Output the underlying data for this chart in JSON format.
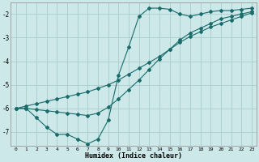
{
  "xlabel": "Humidex (Indice chaleur)",
  "bg_color": "#cce8e8",
  "line_color": "#1a6b6b",
  "grid_color": "#aacccc",
  "xlim": [
    -0.5,
    23.5
  ],
  "ylim": [
    -7.6,
    -1.5
  ],
  "yticks": [
    -7,
    -6,
    -5,
    -4,
    -3,
    -2
  ],
  "xticks": [
    0,
    1,
    2,
    3,
    4,
    5,
    6,
    7,
    8,
    9,
    10,
    11,
    12,
    13,
    14,
    15,
    16,
    17,
    18,
    19,
    20,
    21,
    22,
    23
  ],
  "line1_x": [
    0,
    1,
    2,
    3,
    4,
    5,
    6,
    7,
    8,
    9,
    10,
    11,
    12,
    13,
    14,
    15,
    16,
    17,
    18,
    19,
    20,
    21,
    22,
    23
  ],
  "line1_y": [
    -6.0,
    -6.0,
    -6.4,
    -6.8,
    -7.1,
    -7.1,
    -7.3,
    -7.5,
    -7.3,
    -6.5,
    -4.6,
    -3.4,
    -2.1,
    -1.75,
    -1.75,
    -1.8,
    -2.0,
    -2.1,
    -2.0,
    -1.9,
    -1.85,
    -1.85,
    -1.8,
    -1.75
  ],
  "line2_x": [
    0,
    1,
    2,
    3,
    4,
    5,
    6,
    7,
    8,
    9,
    10,
    11,
    12,
    13,
    14,
    15,
    16,
    17,
    18,
    19,
    20,
    21,
    22,
    23
  ],
  "line2_y": [
    -6.0,
    -6.0,
    -6.05,
    -6.1,
    -6.15,
    -6.2,
    -6.25,
    -6.3,
    -6.2,
    -5.95,
    -5.6,
    -5.2,
    -4.8,
    -4.35,
    -3.9,
    -3.5,
    -3.1,
    -2.8,
    -2.6,
    -2.4,
    -2.2,
    -2.1,
    -2.0,
    -1.9
  ],
  "line3_x": [
    0,
    1,
    2,
    3,
    4,
    5,
    6,
    7,
    8,
    9,
    10,
    11,
    12,
    13,
    14,
    15,
    16,
    17,
    18,
    19,
    20,
    21,
    22,
    23
  ],
  "line3_y": [
    -6.0,
    -5.9,
    -5.8,
    -5.7,
    -5.6,
    -5.5,
    -5.4,
    -5.3,
    -5.15,
    -5.0,
    -4.8,
    -4.55,
    -4.3,
    -4.05,
    -3.8,
    -3.5,
    -3.2,
    -2.95,
    -2.75,
    -2.55,
    -2.4,
    -2.25,
    -2.1,
    -1.95
  ]
}
